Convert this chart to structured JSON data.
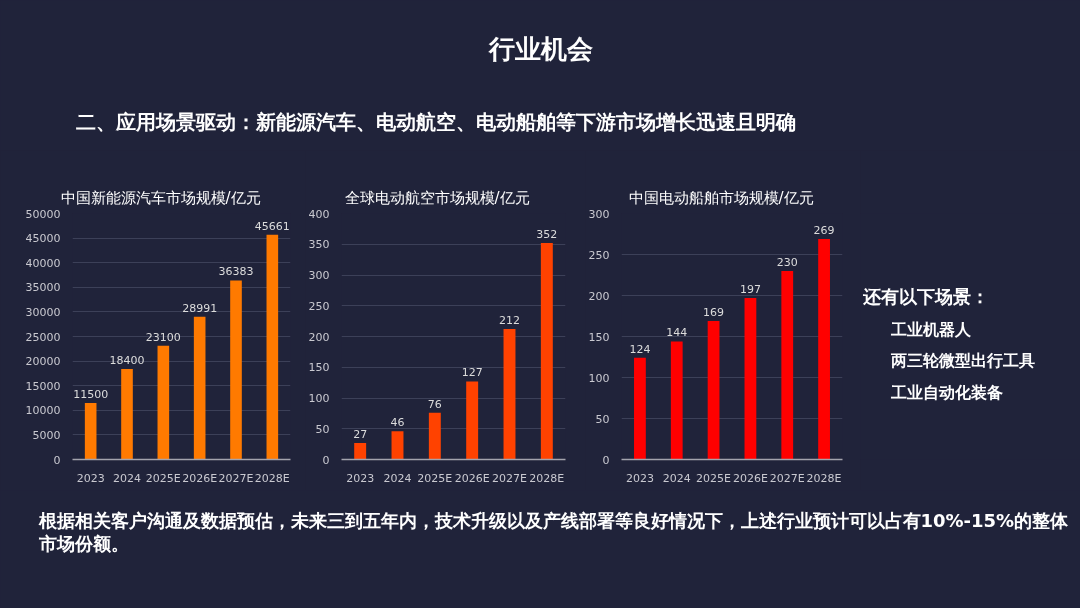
{
  "chart_data": [
    {
      "type": "other",
      "title": "行业机会",
      "subtitle": "二、应用场景驱动：新能源汽车、电动航空、电动船舶等下游市场增长迅速且明确"
    },
    {
      "type": "bar",
      "title": "中国新能源汽车市场规模/亿元",
      "categories": [
        "2023",
        "2024",
        "2025E",
        "2026E",
        "2027E",
        "2028E"
      ],
      "values": [
        11500,
        18400,
        23100,
        28991,
        36383,
        45661
      ],
      "color": "#ff7a00",
      "ylim": [
        0,
        50000
      ],
      "yticks": [
        0,
        5000,
        10000,
        15000,
        20000,
        25000,
        30000,
        35000,
        40000,
        45000,
        50000
      ],
      "grid": "y",
      "data_labels": true
    },
    {
      "type": "bar",
      "title": "全球电动航空市场规模/亿元",
      "categories": [
        "2023",
        "2024",
        "2025E",
        "2026E",
        "2027E",
        "2028E"
      ],
      "values": [
        27,
        46,
        76,
        127,
        212,
        352
      ],
      "color": "#ff4200",
      "ylim": [
        0,
        400
      ],
      "yticks": [
        0,
        50,
        100,
        150,
        200,
        250,
        300,
        350,
        400
      ],
      "grid": "y",
      "data_labels": true
    },
    {
      "type": "bar",
      "title": "中国电动船舶市场规模/亿元",
      "categories": [
        "2023",
        "2024",
        "2025E",
        "2026E",
        "2027E",
        "2028E"
      ],
      "values": [
        124,
        144,
        169,
        197,
        230,
        269
      ],
      "color": "#ff0000",
      "ylim": [
        0,
        300
      ],
      "yticks": [
        0,
        50,
        100,
        150,
        200,
        250,
        300
      ],
      "grid": "y",
      "data_labels": true
    },
    {
      "type": "other",
      "title": "还有以下场景：",
      "annotations": [
        "工业机器人",
        "两三轮微型出行工具",
        "工业自动化装备"
      ]
    },
    {
      "type": "other",
      "annotations": [
        "根据相关客户沟通及数据预估，未来三到五年内，技术升级以及产线部署等良好情况下，上述行业预计可以占有10%-15%的整体市场份额。"
      ]
    }
  ]
}
